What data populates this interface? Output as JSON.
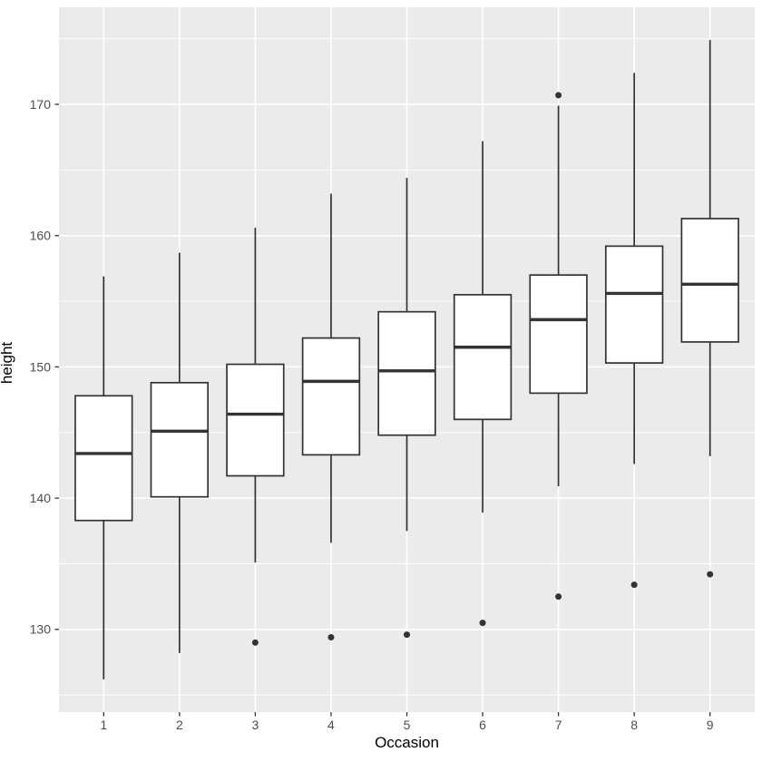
{
  "figure": {
    "outer_background": "#FFFFFF"
  },
  "chart_data": {
    "type": "boxplot",
    "title": "",
    "xlabel": "Occasion",
    "ylabel": "height",
    "legend": "none",
    "categories": [
      "1",
      "2",
      "3",
      "4",
      "5",
      "6",
      "7",
      "8",
      "9"
    ],
    "y_ticks": [
      130,
      140,
      150,
      160,
      170
    ],
    "y_minor_gridlines": [
      125,
      135,
      145,
      155,
      165,
      175
    ],
    "ylim": [
      123.7,
      177.4
    ],
    "grid": "horizontal major+minor white lines and vertical category lines on grey panel",
    "boxes": [
      {
        "occasion": "1",
        "whisker_low": 126.2,
        "q1": 138.3,
        "median": 143.4,
        "q3": 147.8,
        "whisker_high": 156.9,
        "outliers": []
      },
      {
        "occasion": "2",
        "whisker_low": 128.2,
        "q1": 140.1,
        "median": 145.1,
        "q3": 148.8,
        "whisker_high": 158.7,
        "outliers": []
      },
      {
        "occasion": "3",
        "whisker_low": 135.1,
        "q1": 141.7,
        "median": 146.4,
        "q3": 150.2,
        "whisker_high": 160.6,
        "outliers": [
          129.0
        ]
      },
      {
        "occasion": "4",
        "whisker_low": 136.6,
        "q1": 143.3,
        "median": 148.9,
        "q3": 152.2,
        "whisker_high": 163.2,
        "outliers": [
          129.4
        ]
      },
      {
        "occasion": "5",
        "whisker_low": 137.5,
        "q1": 144.8,
        "median": 149.7,
        "q3": 154.2,
        "whisker_high": 164.4,
        "outliers": [
          129.6
        ]
      },
      {
        "occasion": "6",
        "whisker_low": 138.9,
        "q1": 146.0,
        "median": 151.5,
        "q3": 155.5,
        "whisker_high": 167.2,
        "outliers": [
          130.5
        ]
      },
      {
        "occasion": "7",
        "whisker_low": 140.9,
        "q1": 148.0,
        "median": 153.6,
        "q3": 157.0,
        "whisker_high": 169.9,
        "outliers": [
          132.5,
          170.7
        ]
      },
      {
        "occasion": "8",
        "whisker_low": 142.6,
        "q1": 150.3,
        "median": 155.6,
        "q3": 159.2,
        "whisker_high": 172.4,
        "outliers": [
          133.4
        ]
      },
      {
        "occasion": "9",
        "whisker_low": 143.2,
        "q1": 151.9,
        "median": 156.3,
        "q3": 161.3,
        "whisker_high": 174.9,
        "outliers": [
          134.2
        ]
      }
    ],
    "colors": {
      "panel_bg": "#EBEBEB",
      "gridline": "#FFFFFF",
      "box_stroke": "#333333",
      "box_fill": "#FFFFFF",
      "outlier": "#333333",
      "tick_mark": "#333333",
      "tick_label": "#4D4D4D",
      "axis_title": "#000000"
    }
  }
}
